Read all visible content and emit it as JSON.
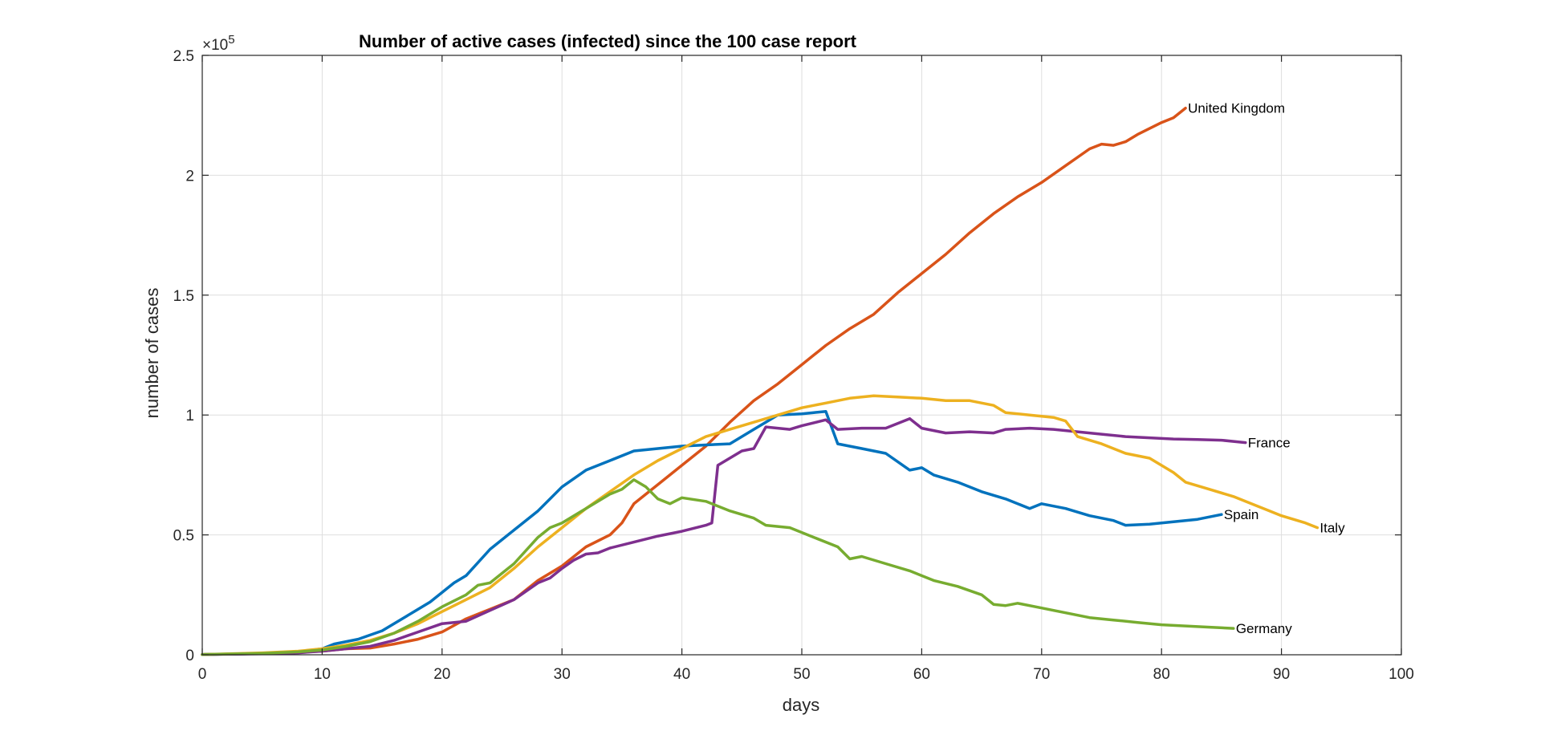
{
  "chart_data": {
    "type": "line",
    "title": "Number of active cases (infected) since the 100 case report",
    "xlabel": "days",
    "ylabel": "number of cases",
    "exponent_label": "×10",
    "exponent_power": "5",
    "xlim": [
      0,
      100
    ],
    "ylim": [
      0,
      250000
    ],
    "x_ticks": [
      0,
      10,
      20,
      30,
      40,
      50,
      60,
      70,
      80,
      90,
      100
    ],
    "x_tick_labels": [
      "0",
      "10",
      "20",
      "30",
      "40",
      "50",
      "60",
      "70",
      "80",
      "90",
      "100"
    ],
    "y_ticks": [
      0,
      50000,
      100000,
      150000,
      200000,
      250000
    ],
    "y_tick_labels": [
      "0",
      "0.5",
      "1",
      "1.5",
      "2",
      "2.5"
    ],
    "grid": true,
    "series": [
      {
        "name": "United Kingdom",
        "color": "#D95319",
        "points": [
          [
            0,
            100
          ],
          [
            5,
            500
          ],
          [
            8,
            1000
          ],
          [
            10,
            1500
          ],
          [
            12,
            2500
          ],
          [
            14,
            2800
          ],
          [
            16,
            4500
          ],
          [
            18,
            6500
          ],
          [
            20,
            9500
          ],
          [
            22,
            15000
          ],
          [
            24,
            19000
          ],
          [
            26,
            23000
          ],
          [
            28,
            31000
          ],
          [
            30,
            37000
          ],
          [
            32,
            45000
          ],
          [
            34,
            50000
          ],
          [
            35,
            55000
          ],
          [
            36,
            63000
          ],
          [
            38,
            71000
          ],
          [
            40,
            79000
          ],
          [
            42,
            87000
          ],
          [
            44,
            97000
          ],
          [
            46,
            106000
          ],
          [
            48,
            113000
          ],
          [
            50,
            121000
          ],
          [
            52,
            129000
          ],
          [
            54,
            136000
          ],
          [
            56,
            142000
          ],
          [
            58,
            151000
          ],
          [
            60,
            159000
          ],
          [
            62,
            167000
          ],
          [
            64,
            176000
          ],
          [
            66,
            184000
          ],
          [
            68,
            191000
          ],
          [
            70,
            197000
          ],
          [
            72,
            204000
          ],
          [
            74,
            211000
          ],
          [
            75,
            213000
          ],
          [
            76,
            212500
          ],
          [
            77,
            214000
          ],
          [
            78,
            217000
          ],
          [
            80,
            222000
          ],
          [
            81,
            224000
          ],
          [
            82,
            228000
          ]
        ]
      },
      {
        "name": "Spain",
        "color": "#0072BD",
        "points": [
          [
            0,
            100
          ],
          [
            5,
            500
          ],
          [
            8,
            1200
          ],
          [
            10,
            2500
          ],
          [
            11,
            4500
          ],
          [
            13,
            6500
          ],
          [
            15,
            10000
          ],
          [
            17,
            16000
          ],
          [
            19,
            22000
          ],
          [
            21,
            30000
          ],
          [
            22,
            33000
          ],
          [
            24,
            44000
          ],
          [
            26,
            52000
          ],
          [
            28,
            60000
          ],
          [
            30,
            70000
          ],
          [
            32,
            77000
          ],
          [
            34,
            81000
          ],
          [
            36,
            85000
          ],
          [
            38,
            86000
          ],
          [
            40,
            87000
          ],
          [
            42,
            87500
          ],
          [
            44,
            88000
          ],
          [
            46,
            94000
          ],
          [
            48,
            100000
          ],
          [
            50,
            100500
          ],
          [
            51,
            101000
          ],
          [
            52,
            101500
          ],
          [
            53,
            88000
          ],
          [
            55,
            86000
          ],
          [
            57,
            84000
          ],
          [
            59,
            77000
          ],
          [
            60,
            78000
          ],
          [
            61,
            75000
          ],
          [
            63,
            72000
          ],
          [
            65,
            68000
          ],
          [
            67,
            65000
          ],
          [
            69,
            61000
          ],
          [
            70,
            63000
          ],
          [
            72,
            61000
          ],
          [
            74,
            58000
          ],
          [
            76,
            56000
          ],
          [
            77,
            54000
          ],
          [
            79,
            54500
          ],
          [
            81,
            55500
          ],
          [
            83,
            56500
          ],
          [
            85,
            58500
          ]
        ]
      },
      {
        "name": "France",
        "color": "#7E2F8E",
        "points": [
          [
            0,
            100
          ],
          [
            5,
            400
          ],
          [
            8,
            800
          ],
          [
            10,
            1500
          ],
          [
            12,
            2500
          ],
          [
            14,
            3500
          ],
          [
            16,
            6000
          ],
          [
            18,
            9500
          ],
          [
            20,
            13000
          ],
          [
            22,
            14000
          ],
          [
            24,
            18500
          ],
          [
            26,
            23000
          ],
          [
            28,
            30000
          ],
          [
            29,
            32000
          ],
          [
            30,
            36000
          ],
          [
            31,
            39500
          ],
          [
            32,
            42000
          ],
          [
            33,
            42500
          ],
          [
            34,
            44500
          ],
          [
            36,
            47000
          ],
          [
            38,
            49500
          ],
          [
            40,
            51500
          ],
          [
            42,
            54000
          ],
          [
            42.5,
            55000
          ],
          [
            43,
            79000
          ],
          [
            45,
            85000
          ],
          [
            46,
            86000
          ],
          [
            47,
            95000
          ],
          [
            49,
            94000
          ],
          [
            50,
            95500
          ],
          [
            52,
            98000
          ],
          [
            53,
            94000
          ],
          [
            55,
            94500
          ],
          [
            57,
            94500
          ],
          [
            59,
            98500
          ],
          [
            60,
            94500
          ],
          [
            62,
            92500
          ],
          [
            64,
            93000
          ],
          [
            66,
            92500
          ],
          [
            67,
            94000
          ],
          [
            69,
            94500
          ],
          [
            71,
            94000
          ],
          [
            73,
            93000
          ],
          [
            75,
            92000
          ],
          [
            77,
            91000
          ],
          [
            79,
            90500
          ],
          [
            81,
            90000
          ],
          [
            83,
            89800
          ],
          [
            85,
            89500
          ],
          [
            87,
            88500
          ]
        ]
      },
      {
        "name": "Italy",
        "color": "#EDB120",
        "points": [
          [
            0,
            100
          ],
          [
            5,
            800
          ],
          [
            8,
            1500
          ],
          [
            10,
            2500
          ],
          [
            12,
            4000
          ],
          [
            14,
            6000
          ],
          [
            16,
            9000
          ],
          [
            18,
            13000
          ],
          [
            20,
            18000
          ],
          [
            22,
            23000
          ],
          [
            24,
            28000
          ],
          [
            26,
            36000
          ],
          [
            28,
            45000
          ],
          [
            30,
            53000
          ],
          [
            32,
            61000
          ],
          [
            34,
            68000
          ],
          [
            36,
            75000
          ],
          [
            38,
            81000
          ],
          [
            40,
            86000
          ],
          [
            42,
            91000
          ],
          [
            44,
            94000
          ],
          [
            46,
            97000
          ],
          [
            48,
            100000
          ],
          [
            50,
            103000
          ],
          [
            52,
            105000
          ],
          [
            54,
            107000
          ],
          [
            56,
            108000
          ],
          [
            58,
            107500
          ],
          [
            60,
            107000
          ],
          [
            62,
            106000
          ],
          [
            64,
            106000
          ],
          [
            66,
            104000
          ],
          [
            67,
            101000
          ],
          [
            69,
            100000
          ],
          [
            71,
            99000
          ],
          [
            72,
            97500
          ],
          [
            73,
            91000
          ],
          [
            75,
            88000
          ],
          [
            77,
            84000
          ],
          [
            79,
            82000
          ],
          [
            81,
            76000
          ],
          [
            82,
            72000
          ],
          [
            84,
            69000
          ],
          [
            86,
            66000
          ],
          [
            88,
            62000
          ],
          [
            90,
            58000
          ],
          [
            92,
            55000
          ],
          [
            93,
            53000
          ]
        ]
      },
      {
        "name": "Germany",
        "color": "#77AC30",
        "points": [
          [
            0,
            100
          ],
          [
            5,
            600
          ],
          [
            8,
            1200
          ],
          [
            10,
            2000
          ],
          [
            12,
            3500
          ],
          [
            14,
            5500
          ],
          [
            16,
            9000
          ],
          [
            18,
            14000
          ],
          [
            20,
            20000
          ],
          [
            22,
            25000
          ],
          [
            23,
            29000
          ],
          [
            24,
            30000
          ],
          [
            26,
            38000
          ],
          [
            28,
            49000
          ],
          [
            29,
            53000
          ],
          [
            30,
            55000
          ],
          [
            32,
            61000
          ],
          [
            34,
            67000
          ],
          [
            35,
            69000
          ],
          [
            36,
            73000
          ],
          [
            37,
            70000
          ],
          [
            38,
            65000
          ],
          [
            39,
            63000
          ],
          [
            40,
            65500
          ],
          [
            42,
            64000
          ],
          [
            44,
            60000
          ],
          [
            46,
            57000
          ],
          [
            47,
            54000
          ],
          [
            49,
            53000
          ],
          [
            51,
            49000
          ],
          [
            53,
            45000
          ],
          [
            54,
            40000
          ],
          [
            55,
            41000
          ],
          [
            57,
            38000
          ],
          [
            59,
            35000
          ],
          [
            61,
            31000
          ],
          [
            63,
            28500
          ],
          [
            65,
            25000
          ],
          [
            66,
            21000
          ],
          [
            67,
            20500
          ],
          [
            68,
            21500
          ],
          [
            70,
            19500
          ],
          [
            72,
            17500
          ],
          [
            74,
            15500
          ],
          [
            76,
            14500
          ],
          [
            78,
            13500
          ],
          [
            80,
            12500
          ],
          [
            82,
            12000
          ],
          [
            84,
            11500
          ],
          [
            86,
            11000
          ]
        ]
      }
    ]
  }
}
